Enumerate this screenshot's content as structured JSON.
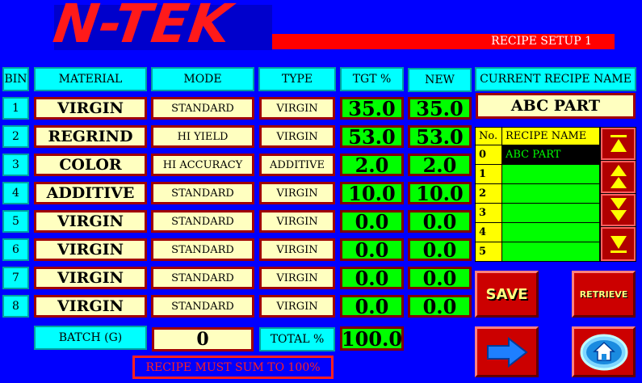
{
  "header": {
    "logo": "N-TEK",
    "title": "RECIPE SETUP  1"
  },
  "columns": {
    "bin": "BIN",
    "material": "MATERIAL",
    "mode": "MODE",
    "type": "TYPE",
    "tgt": "TGT %",
    "new": "NEW"
  },
  "rows": [
    {
      "bin": "1",
      "material": "VIRGIN",
      "mode": "STANDARD",
      "type": "VIRGIN",
      "tgt": "35.0",
      "new": "35.0"
    },
    {
      "bin": "2",
      "material": "REGRIND",
      "mode": "HI YIELD",
      "type": "VIRGIN",
      "tgt": "53.0",
      "new": "53.0"
    },
    {
      "bin": "3",
      "material": "COLOR",
      "mode": "HI ACCURACY",
      "type": "ADDITIVE",
      "tgt": "2.0",
      "new": "2.0"
    },
    {
      "bin": "4",
      "material": "ADDITIVE",
      "mode": "STANDARD",
      "type": "VIRGIN",
      "tgt": "10.0",
      "new": "10.0"
    },
    {
      "bin": "5",
      "material": "VIRGIN",
      "mode": "STANDARD",
      "type": "VIRGIN",
      "tgt": "0.0",
      "new": "0.0"
    },
    {
      "bin": "6",
      "material": "VIRGIN",
      "mode": "STANDARD",
      "type": "VIRGIN",
      "tgt": "0.0",
      "new": "0.0"
    },
    {
      "bin": "7",
      "material": "VIRGIN",
      "mode": "STANDARD",
      "type": "VIRGIN",
      "tgt": "0.0",
      "new": "0.0"
    },
    {
      "bin": "8",
      "material": "VIRGIN",
      "mode": "STANDARD",
      "type": "VIRGIN",
      "tgt": "0.0",
      "new": "0.0"
    }
  ],
  "batch": {
    "label": "BATCH (G)",
    "value": "0"
  },
  "total": {
    "label": "TOTAL %",
    "value": "100.0"
  },
  "message": "RECIPE MUST SUM TO 100%",
  "recipe": {
    "current_label": "CURRENT RECIPE NAME",
    "current_name": "ABC PART",
    "list_header_no": "No.",
    "list_header_name": "RECIPE NAME",
    "items": [
      {
        "no": "0",
        "name": "ABC PART"
      },
      {
        "no": "1",
        "name": ""
      },
      {
        "no": "2",
        "name": ""
      },
      {
        "no": "3",
        "name": ""
      },
      {
        "no": "4",
        "name": ""
      },
      {
        "no": "5",
        "name": ""
      }
    ]
  },
  "buttons": {
    "save": "SAVE",
    "retrieve": "RETRIEVE"
  },
  "icons": {
    "scroll_top": "scroll-to-top-icon",
    "page_up": "page-up-icon",
    "page_down": "page-down-icon",
    "scroll_bottom": "scroll-to-bottom-icon",
    "next": "arrow-right-icon",
    "home": "home-icon"
  },
  "colors": {
    "background": "#0000ff",
    "accent_red": "#ff0000",
    "header_cyan": "#00ffff",
    "field_cream": "#ffffc0",
    "value_green": "#00ff00"
  }
}
